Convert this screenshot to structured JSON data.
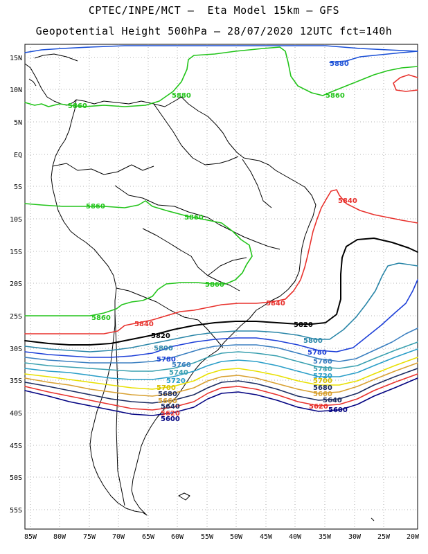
{
  "header": {
    "line1": "CPTEC/INPE/MCT –  Eta Model 15km – GFS",
    "line2": "Geopotential Height 500hPa – 28/07/2020 12UTC fct=140h"
  },
  "axes": {
    "lat_labels": [
      "15N",
      "10N",
      "5N",
      "EQ",
      "5S",
      "10S",
      "15S",
      "20S",
      "25S",
      "30S",
      "35S",
      "40S",
      "45S",
      "50S",
      "55S"
    ],
    "lon_labels": [
      "85W",
      "80W",
      "75W",
      "70W",
      "65W",
      "60W",
      "55W",
      "50W",
      "45W",
      "40W",
      "35W",
      "30W",
      "25W",
      "20W"
    ]
  },
  "contour_labels": {
    "c5880": "5880",
    "c5860": "5860",
    "c5840": "5840",
    "c5820": "5820",
    "c5800": "5800",
    "c5780": "5780",
    "c5760": "5760",
    "c5740": "5740",
    "c5720": "5720",
    "c5700": "5700",
    "c5680": "5680",
    "c5660": "5660",
    "c5640": "5640",
    "c5620": "5620",
    "c5600": "5600"
  },
  "colors": {
    "c5880": "#1a4fd6",
    "c5860": "#22c41a",
    "c5840": "#e8312c",
    "c5820": "#000000",
    "c5800": "#2a86a8",
    "c5780": "#1d3fd8",
    "c5760": "#3a7fc0",
    "c5740": "#3aa0b0",
    "c5720": "#2a9ec8",
    "c5700": "#e8e000",
    "c5680": "#d8a030",
    "c5660": "#1a2a60",
    "c5640": "#e8312c",
    "c5620": "#000080"
  }
}
